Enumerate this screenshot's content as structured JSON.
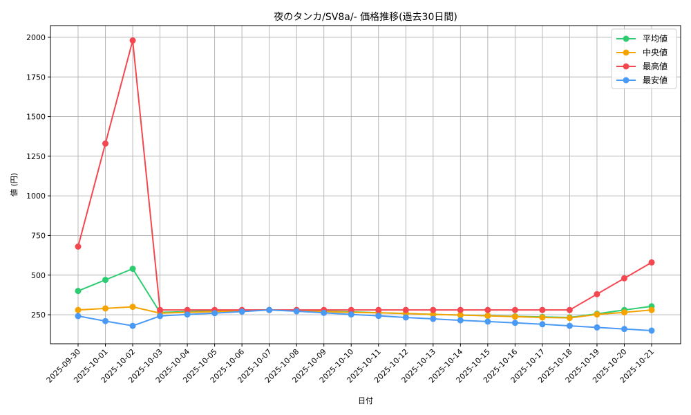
{
  "chart_data": {
    "type": "line",
    "title": "夜のタンカ/SV8a/- 価格推移(過去30日間)",
    "xlabel": "日付",
    "ylabel": "値 (円)",
    "grid": true,
    "legend_position": "upper right",
    "ylim": [
      67,
      2074
    ],
    "yticks": [
      250,
      500,
      750,
      1000,
      1250,
      1500,
      1750,
      2000
    ],
    "categories": [
      "2025-09-30",
      "2025-10-01",
      "2025-10-02",
      "2025-10-03",
      "2025-10-04",
      "2025-10-05",
      "2025-10-06",
      "2025-10-07",
      "2025-10-08",
      "2025-10-09",
      "2025-10-10",
      "2025-10-11",
      "2025-10-12",
      "2025-10-13",
      "2025-10-14",
      "2025-10-15",
      "2025-10-16",
      "2025-10-17",
      "2025-10-18",
      "2025-10-19",
      "2025-10-20",
      "2025-10-21"
    ],
    "series": [
      {
        "name": "平均値",
        "color": "#2ecc71",
        "values": [
          400,
          470,
          540,
          265,
          270,
          275,
          278,
          280,
          275,
          272,
          268,
          263,
          258,
          252,
          248,
          244,
          240,
          236,
          233,
          256,
          280,
          303
        ]
      },
      {
        "name": "中央値",
        "color": "#f5a300",
        "values": [
          280,
          290,
          300,
          260,
          265,
          270,
          275,
          280,
          275,
          270,
          265,
          262,
          258,
          252,
          248,
          243,
          238,
          233,
          230,
          252,
          265,
          280
        ]
      },
      {
        "name": "最高値",
        "color": "#f4474f",
        "values": [
          680,
          1330,
          1980,
          280,
          280,
          280,
          280,
          280,
          280,
          280,
          280,
          280,
          280,
          280,
          280,
          280,
          280,
          280,
          280,
          380,
          480,
          580
        ]
      },
      {
        "name": "最安値",
        "color": "#4a9af5",
        "values": [
          242,
          210,
          180,
          242,
          252,
          260,
          270,
          280,
          272,
          262,
          252,
          243,
          233,
          224,
          215,
          207,
          199,
          190,
          180,
          170,
          160,
          150
        ]
      }
    ]
  }
}
